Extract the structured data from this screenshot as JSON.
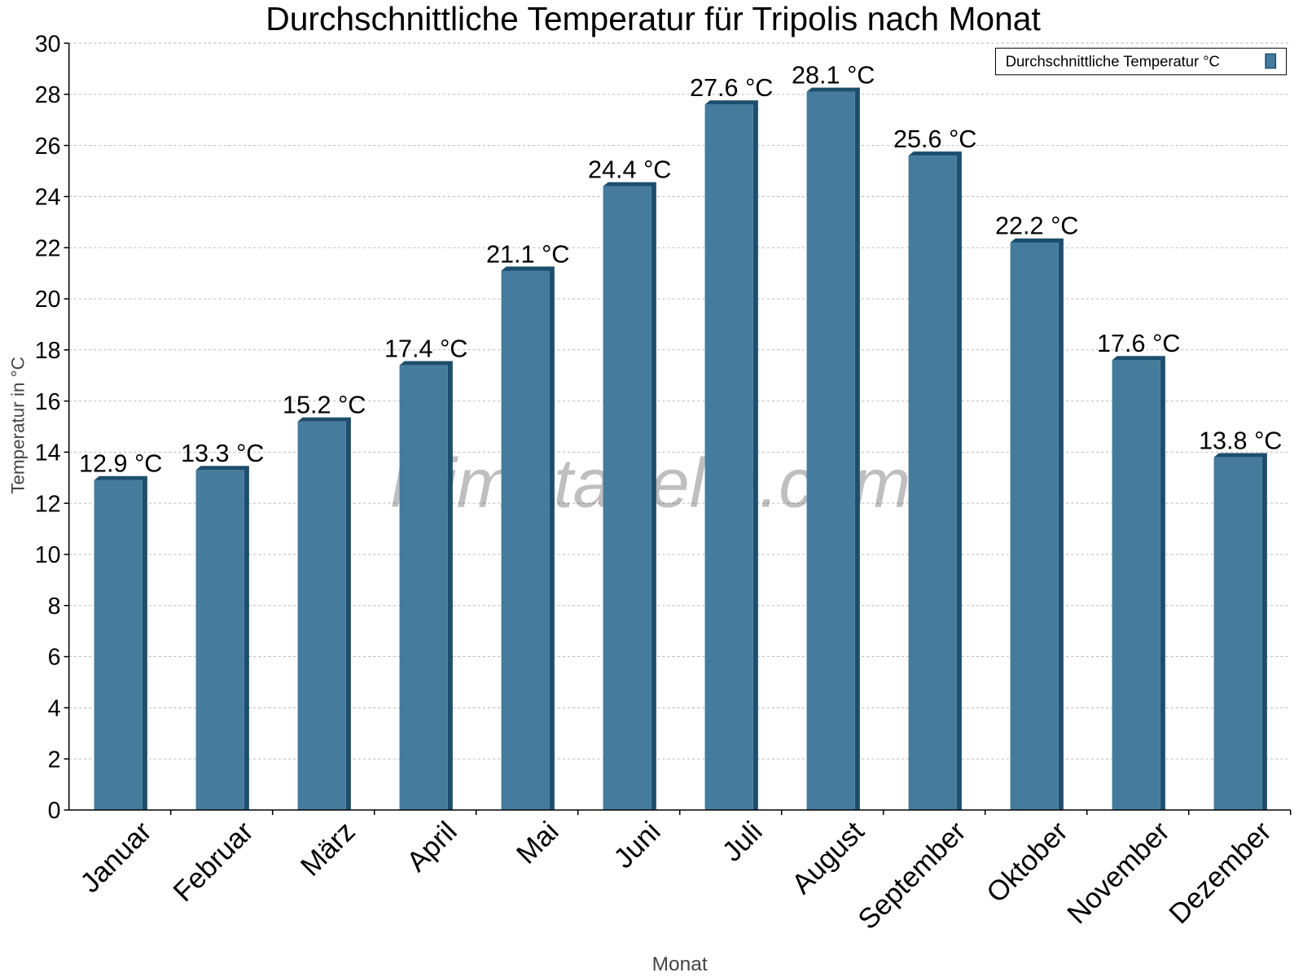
{
  "chart_data": {
    "type": "bar",
    "title": "Durchschnittliche Temperatur für Tripolis nach Monat",
    "xlabel": "Monat",
    "ylabel": "Temperatur in °C",
    "ylim": [
      0,
      30
    ],
    "yticks": [
      0,
      2,
      4,
      6,
      8,
      10,
      12,
      14,
      16,
      18,
      20,
      22,
      24,
      26,
      28,
      30
    ],
    "grid": true,
    "legend_position": "top-right",
    "categories": [
      "Januar",
      "Februar",
      "März",
      "April",
      "Mai",
      "Juni",
      "Juli",
      "August",
      "September",
      "Oktober",
      "November",
      "Dezember"
    ],
    "series": [
      {
        "name": "Durchschnittliche Temperatur °C",
        "values": [
          12.9,
          13.3,
          15.2,
          17.4,
          21.1,
          24.4,
          27.6,
          28.1,
          25.6,
          22.2,
          17.6,
          13.8
        ]
      }
    ],
    "data_labels": [
      "12.9 °C",
      "13.3 °C",
      "15.2 °C",
      "17.4 °C",
      "21.1 °C",
      "24.4 °C",
      "27.6 °C",
      "28.1 °C",
      "25.6 °C",
      "22.2 °C",
      "17.6 °C",
      "13.8 °C"
    ],
    "watermark": "klimatabelle.com",
    "colors": {
      "bar": "#457b9d",
      "bar_side": "#1d4e6e"
    }
  }
}
